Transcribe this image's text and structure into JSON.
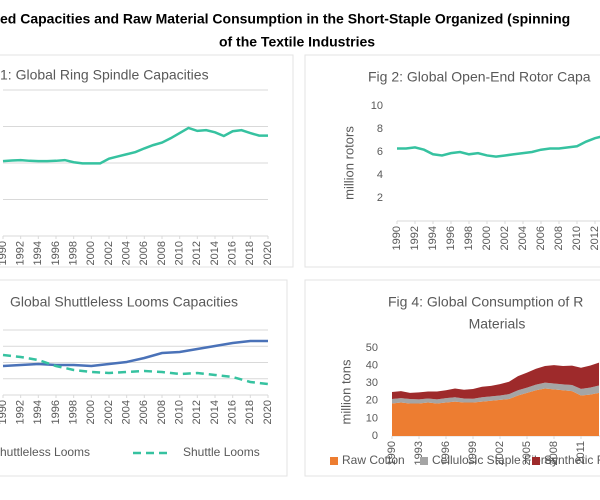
{
  "page_title": [
    "ed Capacities and Raw Material Consumption in the Short-Staple Organized (spinning",
    "of the Textile Industries"
  ],
  "chart_data": [
    {
      "type": "line",
      "title": [
        "1: Global Ring Spindle Capacities"
      ],
      "x": [
        1990,
        1991,
        1992,
        1993,
        1994,
        1995,
        1996,
        1997,
        1998,
        1999,
        2000,
        2001,
        2002,
        2003,
        2004,
        2005,
        2006,
        2007,
        2008,
        2009,
        2010,
        2011,
        2012,
        2013,
        2014,
        2015,
        2016,
        2017,
        2018,
        2019,
        2020
      ],
      "values": [
        205,
        207,
        208,
        206,
        205,
        205,
        206,
        208,
        202,
        199,
        199,
        199,
        212,
        218,
        224,
        230,
        240,
        249,
        256,
        268,
        282,
        296,
        288,
        290,
        284,
        274,
        287,
        290,
        282,
        275,
        275
      ],
      "color": "#36c2a0",
      "xlim": [
        1990,
        2020
      ],
      "xticks": [
        1990,
        1992,
        1994,
        1996,
        1998,
        2000,
        2002,
        2004,
        2006,
        2008,
        2010,
        2012,
        2014,
        2016,
        2018,
        2020
      ],
      "ylim": [
        0,
        400
      ],
      "yticks": [
        0,
        100,
        200,
        300,
        400
      ],
      "grid": true
    },
    {
      "type": "line",
      "title": [
        "Fig 2: Global Open-End Rotor Capa"
      ],
      "ylabel": "million rotors",
      "x": [
        1990,
        1991,
        1992,
        1993,
        1994,
        1995,
        1996,
        1997,
        1998,
        1999,
        2000,
        2001,
        2002,
        2003,
        2004,
        2005,
        2006,
        2007,
        2008,
        2009,
        2010,
        2011,
        2012,
        2013
      ],
      "values": [
        6.3,
        6.3,
        6.4,
        6.2,
        5.8,
        5.7,
        5.9,
        6.0,
        5.8,
        5.9,
        5.7,
        5.6,
        5.7,
        5.8,
        5.9,
        6.0,
        6.2,
        6.3,
        6.3,
        6.4,
        6.5,
        6.9,
        7.2,
        7.4
      ],
      "color": "#36c2a0",
      "xlim": [
        1990,
        2020
      ],
      "xticks": [
        1990,
        1992,
        1994,
        1996,
        1998,
        2000,
        2002,
        2004,
        2006,
        2008,
        2010,
        2012
      ],
      "ylim": [
        0,
        10
      ],
      "yticks": [
        2,
        4,
        6,
        8,
        10
      ],
      "grid": false
    },
    {
      "type": "line",
      "title": [
        "Global Shuttleless Looms Capacities"
      ],
      "x": [
        1990,
        1992,
        1994,
        1996,
        1998,
        2000,
        2002,
        2004,
        2006,
        2008,
        2010,
        2012,
        2014,
        2016,
        2018,
        2020
      ],
      "series": [
        {
          "name": "Shuttleless Looms",
          "color": "#4a72b8",
          "dashed": false,
          "values": [
            446,
            462,
            477,
            462,
            462,
            446,
            477,
            508,
            569,
            646,
            662,
            708,
            754,
            800,
            831,
            831
          ]
        },
        {
          "name": "Shuttle Looms",
          "color": "#36c2a0",
          "dashed": true,
          "values": [
            615,
            585,
            538,
            446,
            385,
            354,
            338,
            354,
            369,
            354,
            323,
            338,
            308,
            277,
            200,
            169
          ]
        }
      ],
      "xlim": [
        1990,
        2020
      ],
      "xticks": [
        1990,
        1992,
        1994,
        1996,
        1998,
        2000,
        2002,
        2004,
        2006,
        2008,
        2010,
        2012,
        2014,
        2016,
        2018,
        2020
      ],
      "ylim": [
        0,
        1000
      ],
      "yticks": [
        0,
        250,
        500,
        750,
        1000
      ],
      "grid": true,
      "legend": "bottom"
    },
    {
      "type": "area",
      "title": [
        "Fig 4: Global Consumption of R",
        "Materials"
      ],
      "ylabel": "million tons",
      "x": [
        1990,
        1991,
        1992,
        1993,
        1994,
        1995,
        1996,
        1997,
        1998,
        1999,
        2000,
        2001,
        2002,
        2003,
        2004,
        2005,
        2006,
        2007,
        2008,
        2009,
        2010,
        2011,
        2012,
        2013
      ],
      "series": [
        {
          "name": "Raw Cotton",
          "color": "#ed7d31",
          "values": [
            18.5,
            19,
            18.5,
            18.5,
            19,
            18.5,
            19,
            19.5,
            19,
            19,
            19.5,
            20,
            20.5,
            21,
            23,
            24.5,
            26,
            27,
            26.5,
            26,
            25.5,
            23,
            23.5,
            24.5
          ]
        },
        {
          "name": "Cellulosic Staple Fibres",
          "color": "#a5a5a5",
          "values": [
            2.5,
            2.5,
            2.5,
            2.3,
            2.3,
            2.3,
            2.5,
            2.5,
            2.3,
            2.2,
            2.5,
            2.5,
            2.5,
            2.8,
            3,
            3,
            3.2,
            3.3,
            3.3,
            3.3,
            3.5,
            3.8,
            4,
            4.2
          ]
        },
        {
          "name": "Synthetic Fibres",
          "color": "#9e2a2b",
          "values": [
            4,
            4,
            3.5,
            4,
            4,
            4.5,
            4.5,
            5,
            5,
            5.5,
            6,
            6,
            6.5,
            7,
            8,
            8.5,
            9,
            9.5,
            10.5,
            10.5,
            11,
            12,
            12.5,
            13
          ]
        }
      ],
      "xlim": [
        1990,
        2020
      ],
      "xticks": [
        1990,
        1993,
        1996,
        1999,
        2002,
        2005,
        2008,
        2011
      ],
      "ylim": [
        0,
        50
      ],
      "yticks": [
        0,
        10,
        20,
        30,
        40,
        50
      ],
      "grid": false,
      "legend": "bottom"
    }
  ]
}
